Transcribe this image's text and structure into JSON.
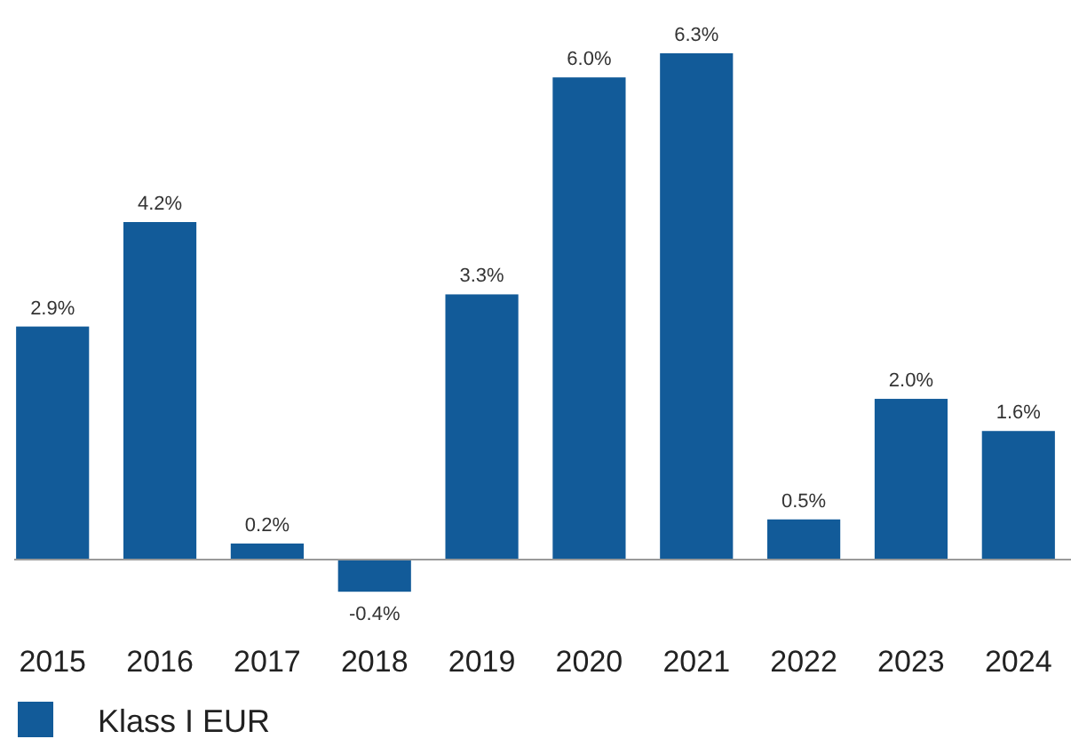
{
  "chart_data": {
    "type": "bar",
    "categories": [
      "2015",
      "2016",
      "2017",
      "2018",
      "2019",
      "2020",
      "2021",
      "2022",
      "2023",
      "2024"
    ],
    "series": [
      {
        "name": "Klass I EUR",
        "color": "#125b99",
        "values": [
          2.9,
          4.2,
          0.2,
          -0.4,
          3.3,
          6.0,
          6.3,
          0.5,
          2.0,
          1.6
        ],
        "value_labels": [
          "2.9%",
          "4.2%",
          "0.2%",
          "-0.4%",
          "3.3%",
          "6.0%",
          "6.3%",
          "0.5%",
          "2.0%",
          "1.6%"
        ]
      }
    ],
    "legend": "bottom"
  }
}
